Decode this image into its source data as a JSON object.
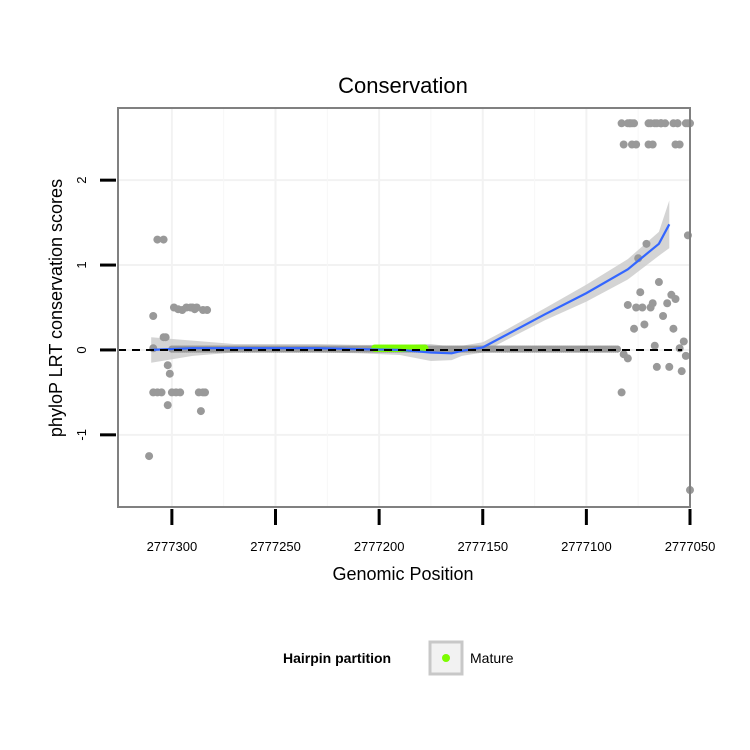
{
  "chart_data": {
    "type": "scatter",
    "title": "Conservation",
    "xlabel": "Genomic Position",
    "ylabel": "phyloP LRT conservation scores",
    "x_reversed": true,
    "xlim": [
      2777326,
      2777050
    ],
    "ylim": [
      -1.85,
      2.85
    ],
    "x_ticks": [
      2777300,
      2777250,
      2777200,
      2777150,
      2777100,
      2777050
    ],
    "x_tick_labels": [
      "2777300",
      "2777250",
      "2777200",
      "2777150",
      "2777100",
      "2777050"
    ],
    "y_ticks": [
      -1,
      0,
      1,
      2
    ],
    "y_tick_labels": [
      "-1",
      "0",
      "1",
      "2"
    ],
    "reference_line": {
      "y": 0,
      "style": "dashed",
      "color": "#000000"
    },
    "colors": {
      "points": "#999999",
      "smooth": "#3366ff",
      "ribbon": "#cccccc",
      "mature": "#7cfc00",
      "panel_border": "#808080",
      "grid": "#f2f2f2"
    },
    "series": [
      {
        "name": "conservation points",
        "x": [
          2777311,
          2777309,
          2777309,
          2777309,
          2777307,
          2777307,
          2777305,
          2777304,
          2777304,
          2777303,
          2777302,
          2777302,
          2777301,
          2777300,
          2777299,
          2777298,
          2777297,
          2777296,
          2777295,
          2777293,
          2777291,
          2777290,
          2777289,
          2777288,
          2777287,
          2777286,
          2777285,
          2777285,
          2777284,
          2777283,
          2777083,
          2777082,
          2777080,
          2777080,
          2777079,
          2777078,
          2777077,
          2777076,
          2777075,
          2777074,
          2777073,
          2777072,
          2777071,
          2777070,
          2777069,
          2777068,
          2777067,
          2777066,
          2777065,
          2777064,
          2777063,
          2777062,
          2777061,
          2777060,
          2777059,
          2777058,
          2777057,
          2777056,
          2777055,
          2777054,
          2777053,
          2777052,
          2777051,
          2777050,
          2777064
        ],
        "y": [
          -1.25,
          0.02,
          0.4,
          -0.5,
          -0.5,
          1.3,
          -0.5,
          1.3,
          0.15,
          0.15,
          -0.18,
          -0.65,
          -0.28,
          -0.5,
          0.5,
          -0.5,
          0.48,
          -0.5,
          0.47,
          0.5,
          0.5,
          0.5,
          0.48,
          0.5,
          -0.5,
          -0.72,
          -0.5,
          0.47,
          -0.5,
          0.47,
          -0.5,
          -0.05,
          0.53,
          -0.1,
          2.67,
          2.42,
          0.25,
          0.5,
          1.08,
          0.68,
          0.5,
          0.3,
          1.25,
          2.67,
          0.5,
          0.55,
          0.05,
          -0.2,
          0.8,
          2.67,
          0.4,
          2.67,
          0.55,
          -0.2,
          0.65,
          0.25,
          0.6,
          2.67,
          0.02,
          -0.25,
          0.1,
          -0.07,
          1.35,
          -1.65,
          2.67
        ]
      },
      {
        "name": "smooth fit",
        "x": [
          2777310,
          2777290,
          2777270,
          2777250,
          2777230,
          2777210,
          2777190,
          2777175,
          2777165,
          2777160,
          2777150,
          2777140,
          2777120,
          2777100,
          2777080,
          2777065,
          2777060
        ],
        "y": [
          0.0,
          0.02,
          0.02,
          0.02,
          0.02,
          0.01,
          0.0,
          -0.03,
          -0.04,
          -0.01,
          0.03,
          0.16,
          0.42,
          0.67,
          0.95,
          1.25,
          1.48
        ],
        "ribbon_half_width": [
          0.15,
          0.09,
          0.05,
          0.05,
          0.05,
          0.05,
          0.06,
          0.1,
          0.08,
          0.06,
          0.06,
          0.06,
          0.07,
          0.1,
          0.12,
          0.14,
          0.28
        ]
      }
    ],
    "mature_region": {
      "x_start": 2777202,
      "x_end": 2777178,
      "y": 0.02
    },
    "upper_points": [
      [
        2777083,
        2.67
      ],
      [
        2777082,
        2.42
      ],
      [
        2777067,
        2.67
      ],
      [
        2777066,
        2.67
      ],
      [
        2777064,
        2.67
      ],
      [
        2777058,
        2.67
      ],
      [
        2777057,
        2.42
      ],
      [
        2777056,
        2.67
      ],
      [
        2777055,
        2.42
      ],
      [
        2777052,
        2.67
      ],
      [
        2777051,
        2.67
      ],
      [
        2777050,
        2.67
      ],
      [
        2777080,
        2.67
      ],
      [
        2777079,
        2.67
      ],
      [
        2777078,
        2.67
      ],
      [
        2777077,
        2.67
      ],
      [
        2777076,
        2.42
      ],
      [
        2777070,
        2.42
      ],
      [
        2777069,
        2.67
      ],
      [
        2777068,
        2.42
      ]
    ],
    "legend": {
      "title": "Hairpin partition",
      "entries": [
        "Mature"
      ],
      "position": "bottom"
    }
  }
}
